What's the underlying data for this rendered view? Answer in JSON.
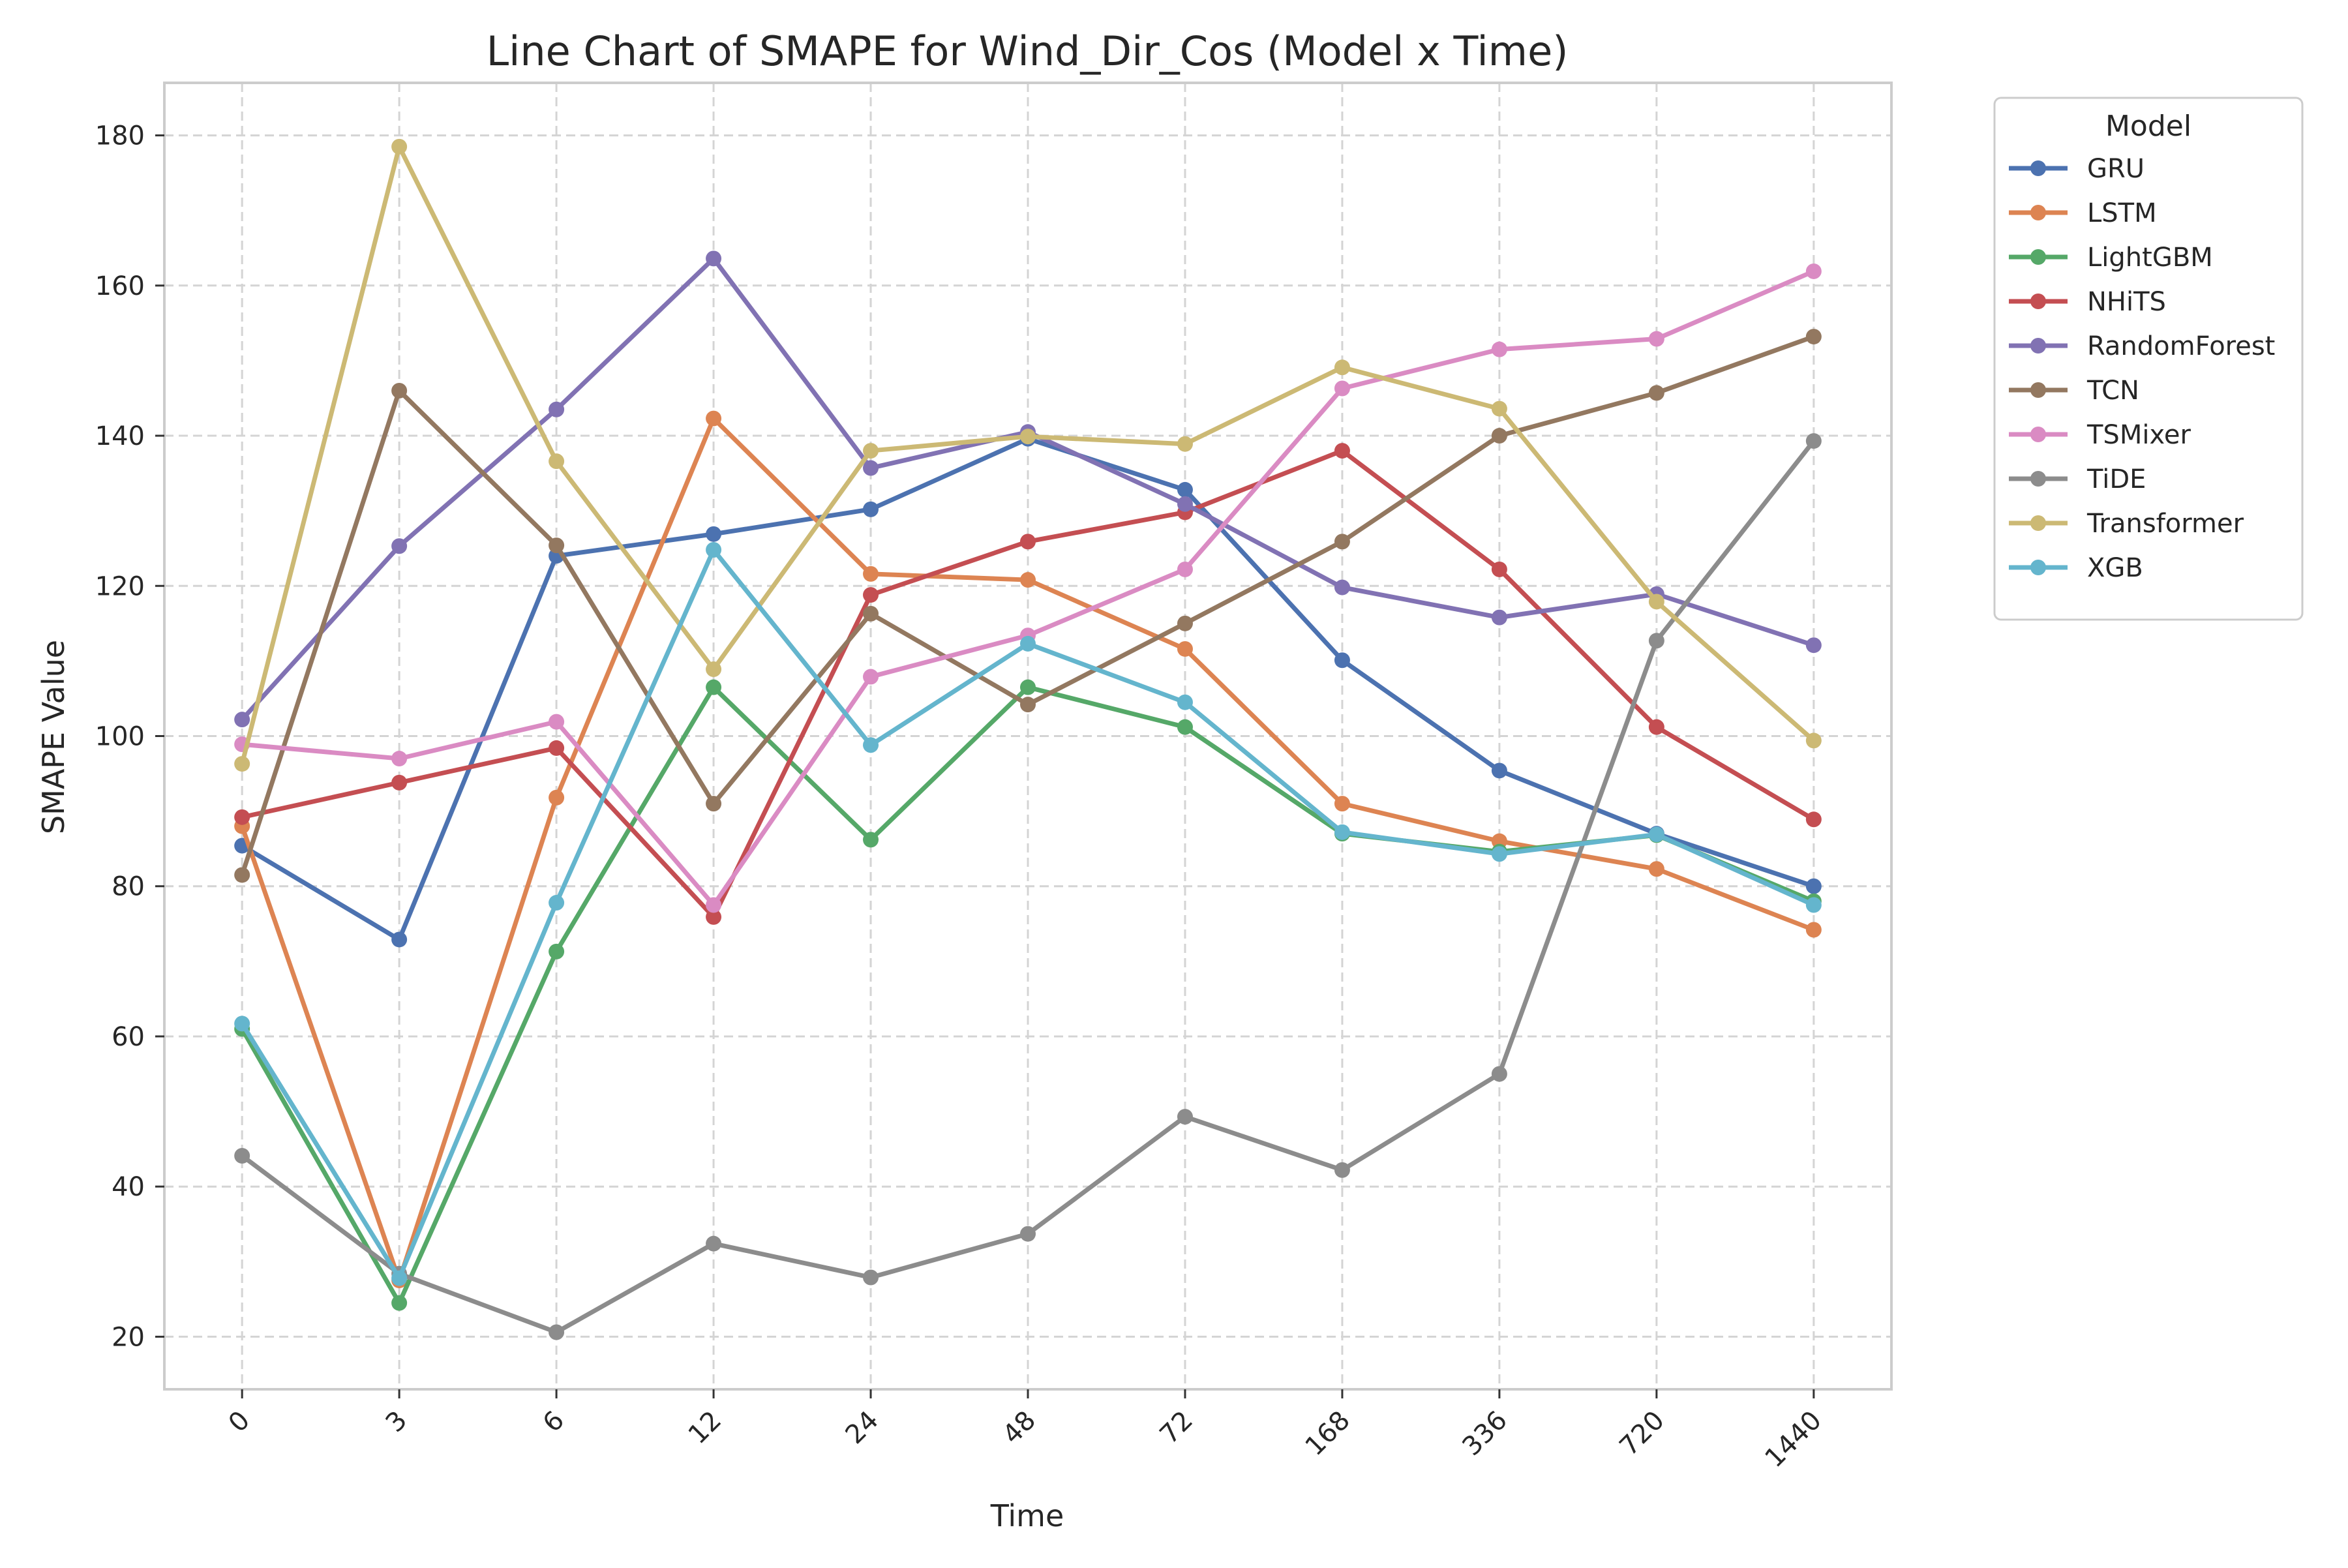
{
  "chart_data": {
    "type": "line",
    "title": "Line Chart of SMAPE for Wind_Dir_Cos (Model x Time)",
    "xlabel": "Time",
    "ylabel": "SMAPE Value",
    "categories": [
      "0",
      "3",
      "6",
      "12",
      "24",
      "48",
      "72",
      "168",
      "336",
      "720",
      "1440"
    ],
    "ylim": [
      13,
      187
    ],
    "yticks": [
      20,
      40,
      60,
      80,
      100,
      120,
      140,
      160,
      180
    ],
    "grid": true,
    "legend": {
      "title": "Model",
      "placement": "outside-top-right"
    },
    "series": [
      {
        "name": "GRU",
        "color": "#4c72b0",
        "values": [
          85.4,
          72.9,
          124.0,
          126.9,
          130.2,
          139.6,
          132.8,
          110.1,
          95.4,
          87.0,
          80.0
        ]
      },
      {
        "name": "LSTM",
        "color": "#dd8452",
        "values": [
          88.0,
          27.5,
          91.8,
          142.3,
          121.6,
          120.8,
          111.6,
          91.0,
          86.0,
          82.3,
          74.2
        ]
      },
      {
        "name": "LightGBM",
        "color": "#55a868",
        "values": [
          61.0,
          24.5,
          71.3,
          106.5,
          86.2,
          106.5,
          101.2,
          87.0,
          84.6,
          86.8,
          78.0
        ]
      },
      {
        "name": "NHiTS",
        "color": "#c44e52",
        "values": [
          89.2,
          93.8,
          98.4,
          75.9,
          118.8,
          125.9,
          129.8,
          138.0,
          122.2,
          101.2,
          88.9
        ]
      },
      {
        "name": "RandomForest",
        "color": "#8172b3",
        "values": [
          102.2,
          125.3,
          143.5,
          163.6,
          135.7,
          140.5,
          130.9,
          119.8,
          115.8,
          118.9,
          112.1
        ]
      },
      {
        "name": "TCN",
        "color": "#937860",
        "values": [
          81.5,
          146.0,
          125.4,
          91.0,
          116.3,
          104.2,
          115.0,
          125.9,
          140.0,
          145.7,
          153.2
        ]
      },
      {
        "name": "TSMixer",
        "color": "#da8bc3",
        "values": [
          98.9,
          97.0,
          101.9,
          77.5,
          107.9,
          113.4,
          122.2,
          146.3,
          151.5,
          152.9,
          161.9
        ]
      },
      {
        "name": "TiDE",
        "color": "#8c8c8c",
        "values": [
          44.1,
          28.4,
          20.6,
          32.4,
          27.9,
          33.7,
          49.3,
          42.2,
          55.0,
          112.7,
          139.3
        ]
      },
      {
        "name": "Transformer",
        "color": "#ccb974",
        "values": [
          96.3,
          178.5,
          136.6,
          108.9,
          138.0,
          139.9,
          138.9,
          149.1,
          143.6,
          117.9,
          99.4
        ]
      },
      {
        "name": "XGB",
        "color": "#64b5cd",
        "values": [
          61.7,
          27.8,
          77.8,
          124.8,
          98.8,
          112.3,
          104.5,
          87.2,
          84.3,
          86.9,
          77.5
        ]
      }
    ]
  }
}
